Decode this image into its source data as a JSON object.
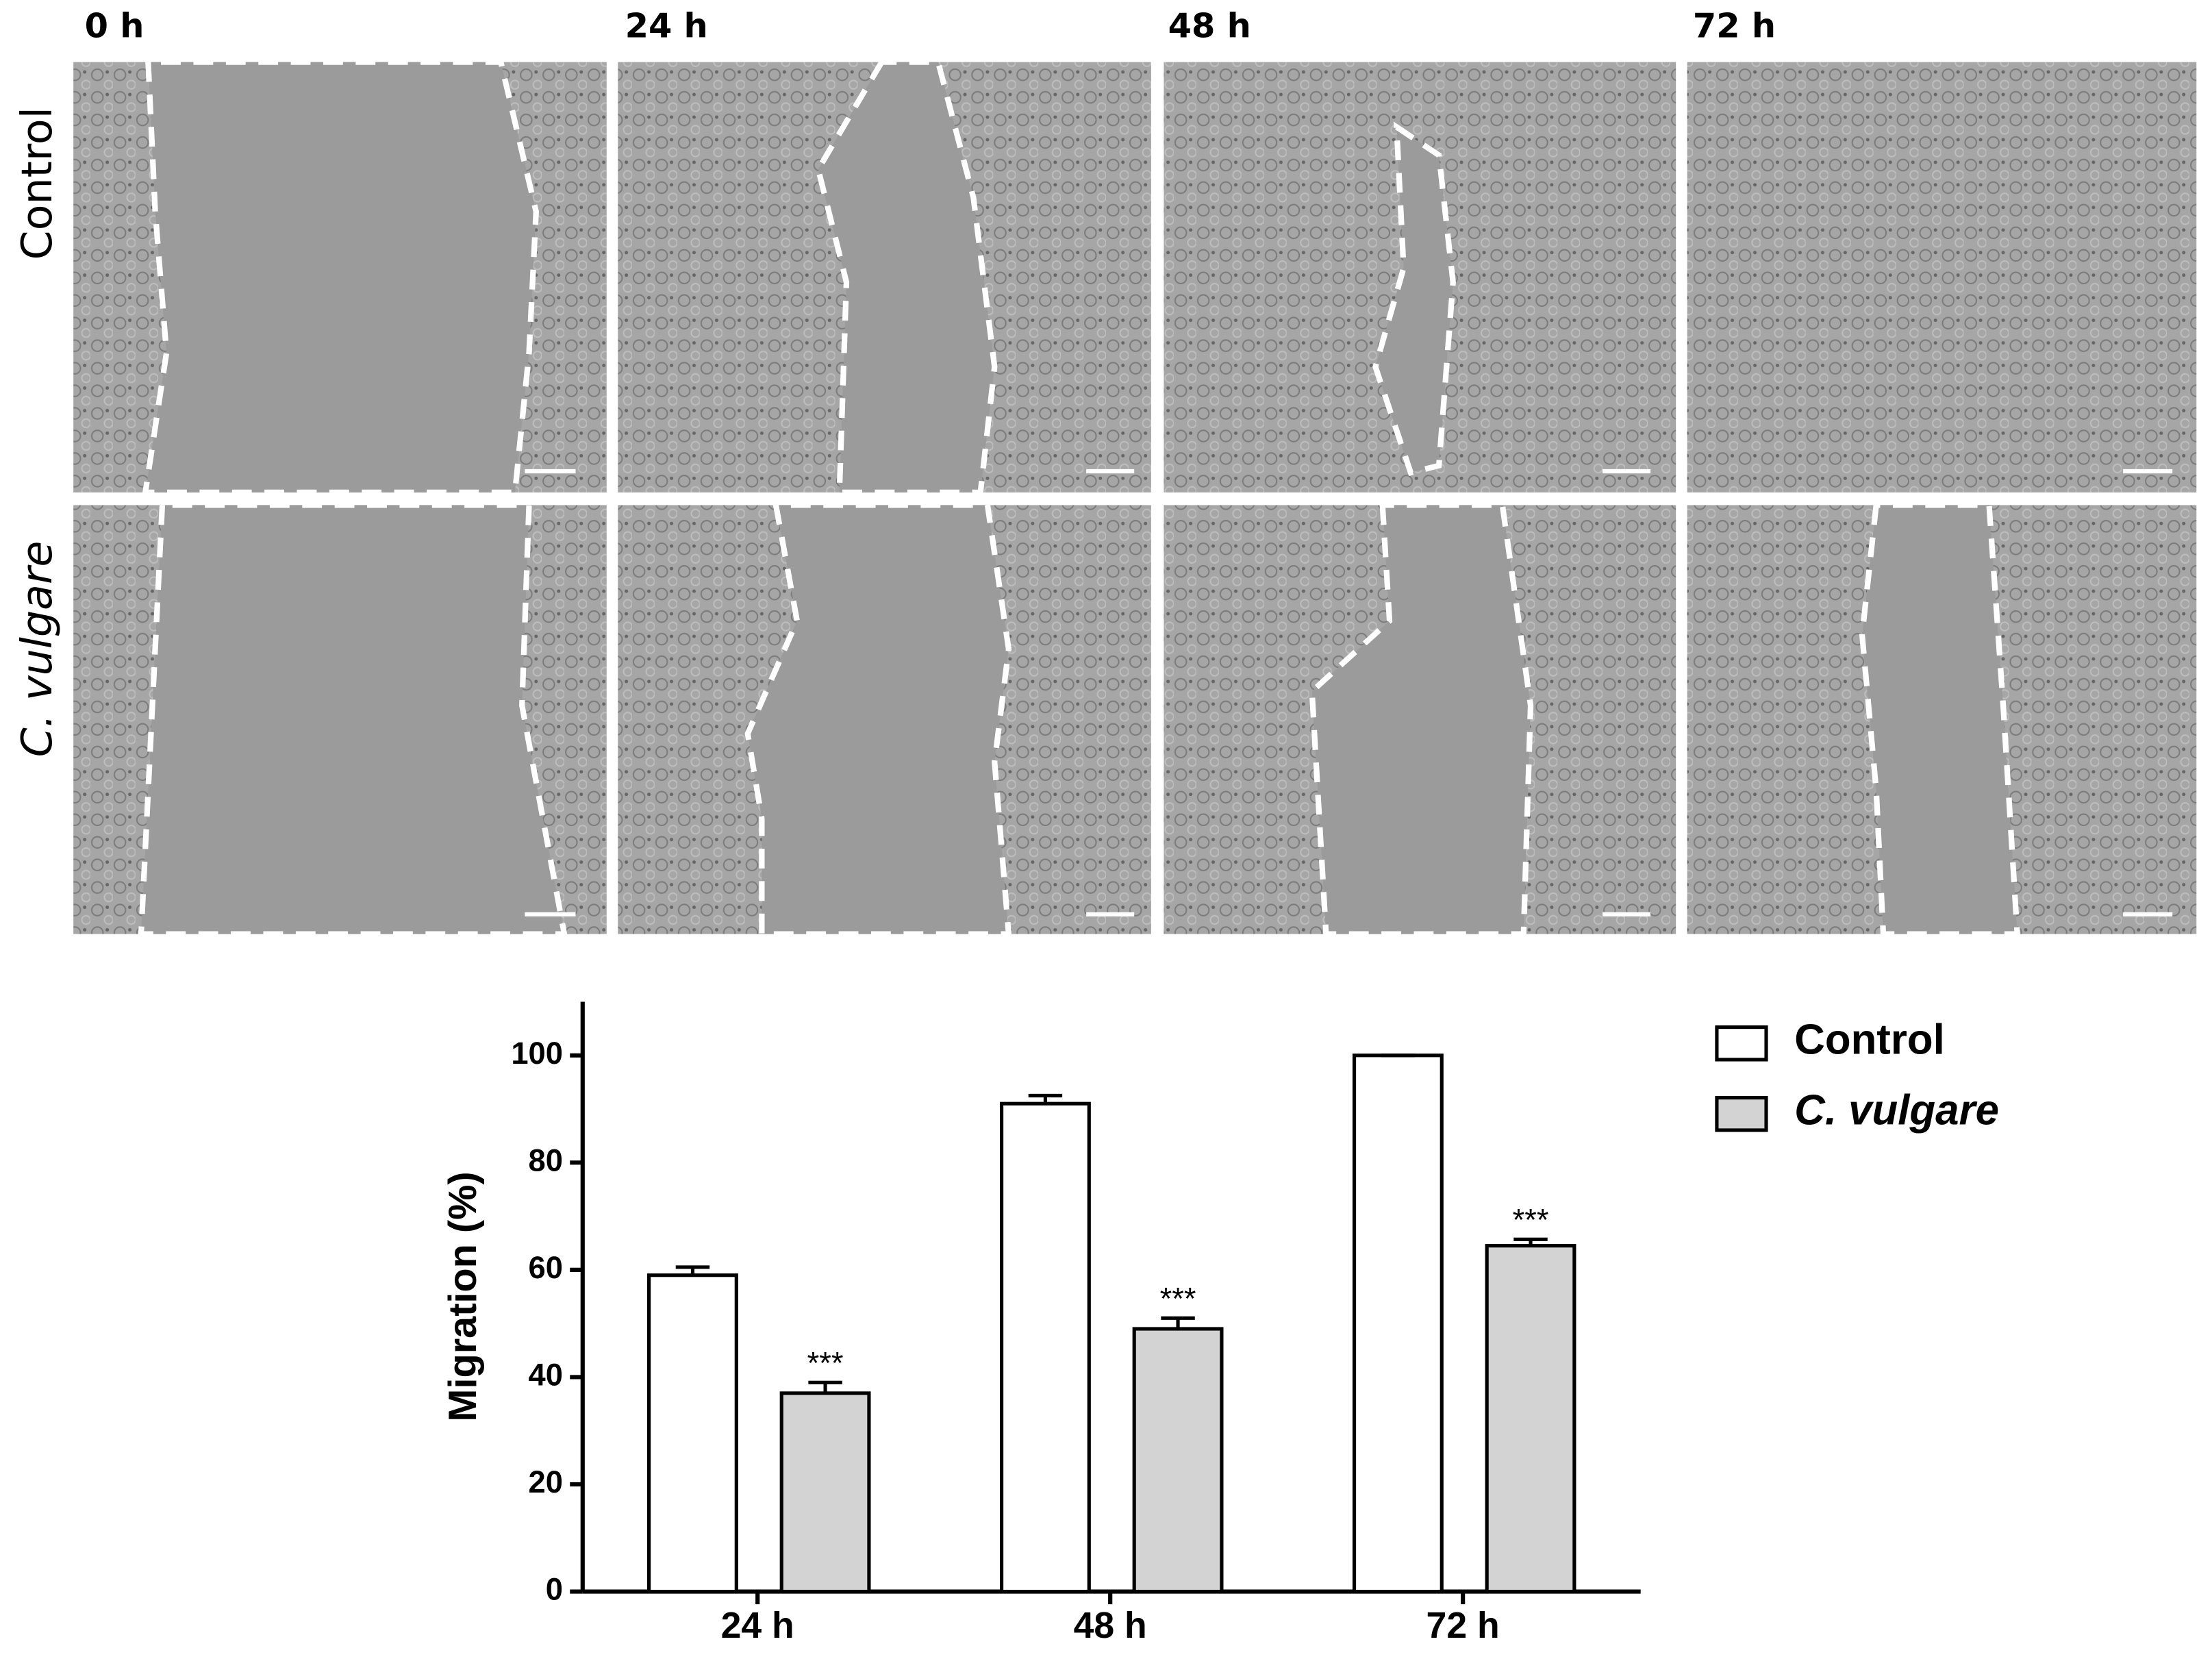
{
  "panels": {
    "columns": [
      "0 h",
      "24 h",
      "48 h",
      "72 h"
    ],
    "rows": [
      "Control",
      "C. vulgare"
    ]
  },
  "chart_data": {
    "type": "bar",
    "y_label": "Migration (%)",
    "categories": [
      "24 h",
      "48 h",
      "72 h"
    ],
    "series": [
      {
        "name": "Control",
        "color": "#ffffff",
        "values": [
          59,
          91,
          100
        ],
        "errors": [
          1.5,
          1.5,
          0
        ]
      },
      {
        "name": "C. vulgare",
        "color": "#d3d3d3",
        "values": [
          37,
          49,
          64.5
        ],
        "errors": [
          2,
          2,
          1.2
        ],
        "annotations": [
          "***",
          "***",
          "***"
        ]
      }
    ],
    "ylim": [
      0,
      110
    ],
    "yticks": [
      0,
      20,
      40,
      60,
      80,
      100
    ],
    "legend": "right"
  }
}
